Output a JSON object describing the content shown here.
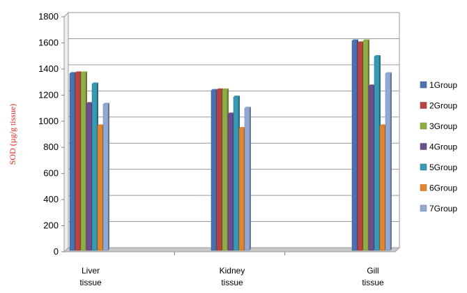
{
  "chart_data": {
    "type": "bar",
    "title": "",
    "xlabel": "",
    "ylabel": "SOD (µg/g tissue)",
    "ylabel_color": "#e8251f",
    "ylim": [
      0,
      1800
    ],
    "yticks": [
      0,
      200,
      400,
      600,
      800,
      1000,
      1200,
      1400,
      1600,
      1800
    ],
    "grid": true,
    "legend_position": "right",
    "categories": [
      [
        "Liver",
        "tissue"
      ],
      [
        "Kidney",
        "tissue"
      ],
      [
        "Gill",
        "tissue"
      ]
    ],
    "series": [
      {
        "name": "1Group",
        "color": "#4a72b0",
        "values": [
          1355,
          1225,
          1605
        ]
      },
      {
        "name": "2Group",
        "color": "#b84440",
        "values": [
          1360,
          1230,
          1590
        ]
      },
      {
        "name": "3Group",
        "color": "#8fae44",
        "values": [
          1360,
          1230,
          1605
        ]
      },
      {
        "name": "4Group",
        "color": "#6e4e90",
        "values": [
          1125,
          1045,
          1260
        ]
      },
      {
        "name": "5Group",
        "color": "#3899b4",
        "values": [
          1275,
          1175,
          1485
        ]
      },
      {
        "name": "6Group",
        "color": "#e08530",
        "values": [
          955,
          935,
          955
        ]
      },
      {
        "name": "7Group",
        "color": "#92a9d4",
        "values": [
          1120,
          1090,
          1355
        ]
      }
    ]
  }
}
